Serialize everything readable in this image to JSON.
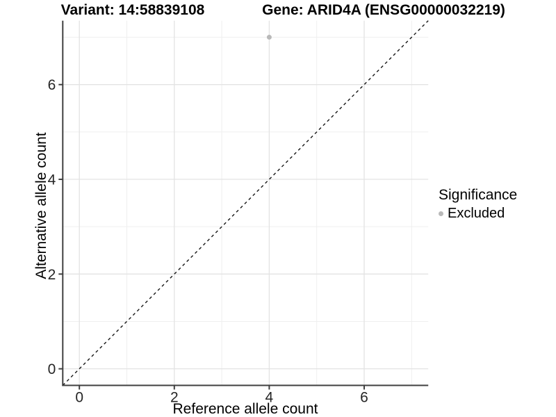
{
  "colors": {
    "background": "#ffffff",
    "grid_major": "#e3e3e3",
    "grid_minor": "#efefef",
    "axis_line": "#3f3f3f",
    "tick_text": "#262626",
    "dash_line": "#161616",
    "point": "#b9b9b9"
  },
  "chart_data": {
    "type": "scatter",
    "title_left": "Variant: 14:58839108",
    "title_right": "Gene: ARID4A (ENSG00000032219)",
    "xlabel": "Reference allele count",
    "ylabel": "Alternative allele count",
    "xlim": [
      -0.35,
      7.35
    ],
    "ylim": [
      -0.35,
      7.35
    ],
    "x_ticks": [
      0,
      2,
      4,
      6
    ],
    "y_ticks": [
      0,
      2,
      4,
      6
    ],
    "x_minor": [
      1,
      3,
      5,
      7
    ],
    "y_minor": [
      1,
      3,
      5,
      7
    ],
    "grid": "on",
    "abline": {
      "slope": 1,
      "intercept": 0,
      "style": "dashed"
    },
    "points": [
      {
        "x": 4,
        "y": 7,
        "significance": "Excluded"
      }
    ],
    "legend": {
      "title": "Significance",
      "position": "right",
      "items": [
        {
          "label": "Excluded",
          "color": "#b9b9b9",
          "marker": "circle"
        }
      ]
    }
  }
}
